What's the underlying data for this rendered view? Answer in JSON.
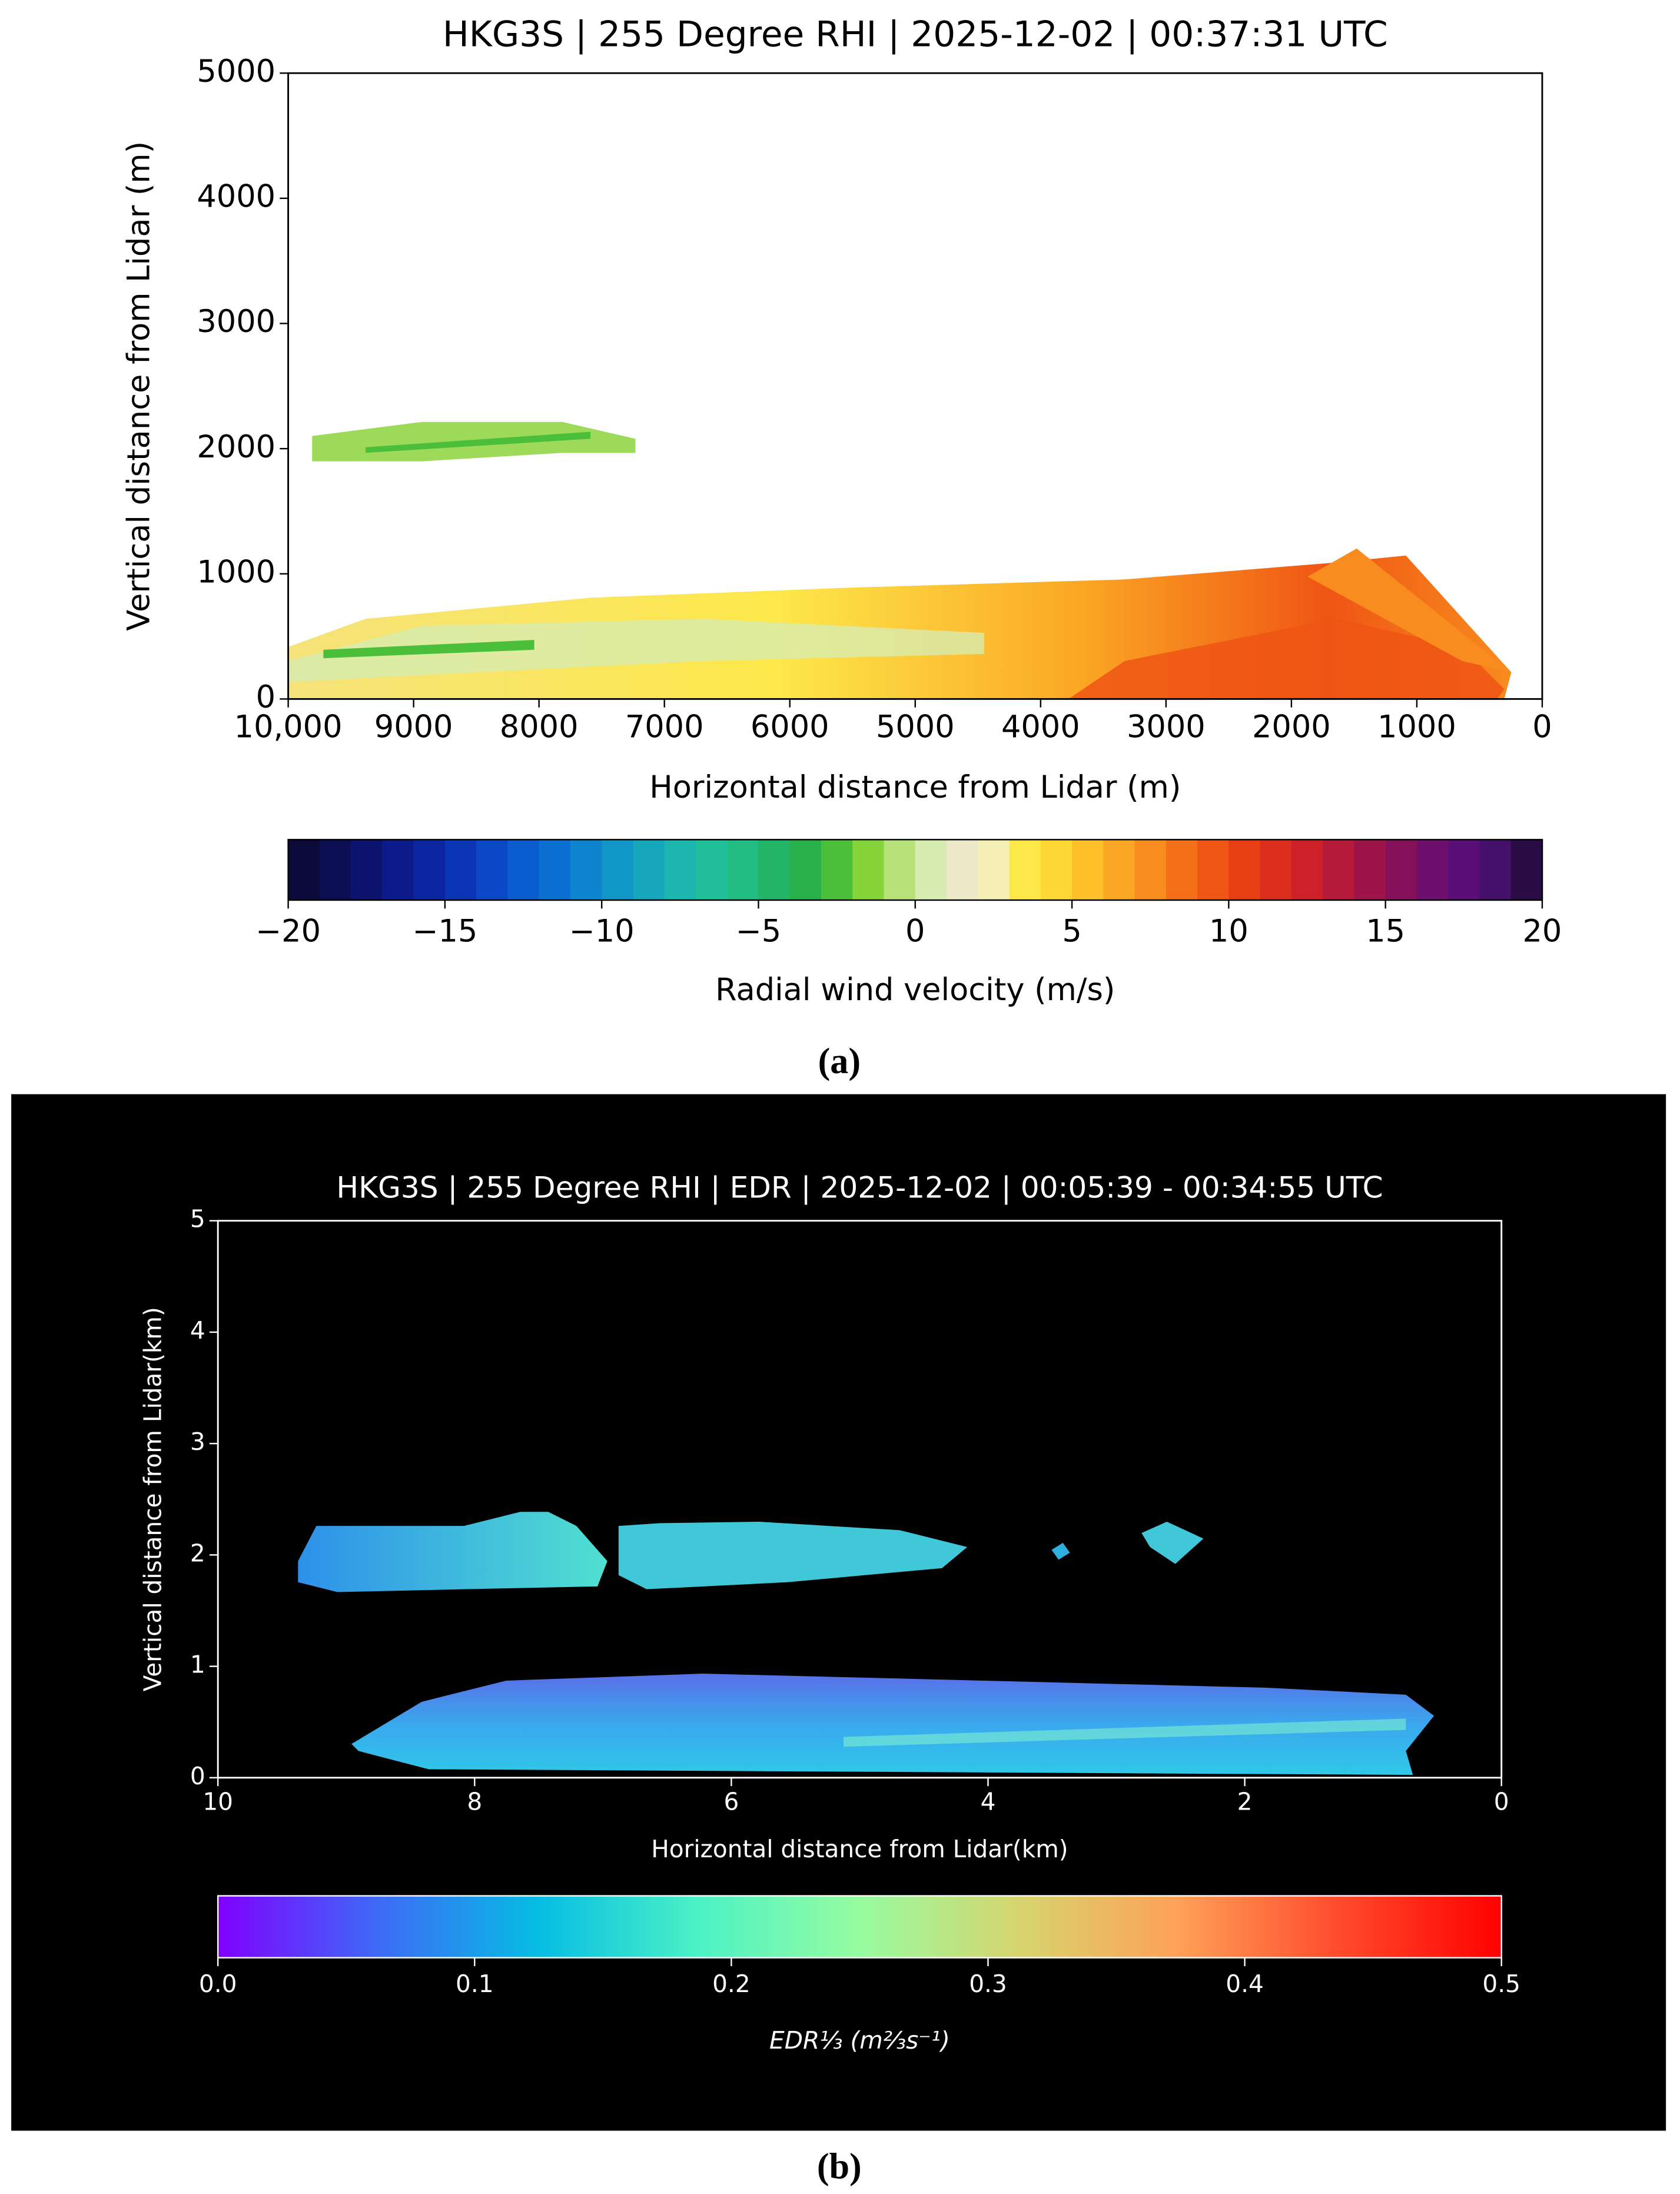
{
  "chart_data": [
    {
      "type": "rhi",
      "theme": "light",
      "title": "HKG3S | 255 Degree RHI | 2025-12-02 | 00:37:31 UTC",
      "xlabel": "Horizontal distance from Lidar (m)",
      "ylabel": "Vertical distance from Lidar (m)",
      "xlim": [
        10000,
        0
      ],
      "xticks": [
        {
          "value": 10000,
          "label": "10,000"
        },
        9000,
        8000,
        7000,
        6000,
        5000,
        4000,
        3000,
        2000,
        1000,
        0
      ],
      "ylim": [
        0,
        5000
      ],
      "yticks": [
        0,
        1000,
        2000,
        3000,
        4000,
        5000
      ],
      "colorbar": {
        "label": "Radial wind velocity (m/s)",
        "style": "discrete",
        "lim": [
          -20,
          20
        ],
        "ticks": [
          {
            "value": -20,
            "label": "−20"
          },
          {
            "value": -15,
            "label": "−15"
          },
          {
            "value": -10,
            "label": "−10"
          },
          {
            "value": -5,
            "label": "−5"
          },
          0,
          5,
          10,
          15,
          20
        ],
        "colors": [
          "#0b0a3a",
          "#0d0f55",
          "#0d1470",
          "#0c1a8a",
          "#0b25a0",
          "#0a35b5",
          "#0a48c5",
          "#0b5ccf",
          "#0c70d2",
          "#0e84cf",
          "#1196c8",
          "#16a7bc",
          "#1cb6ae",
          "#20bf9a",
          "#22bd82",
          "#23b567",
          "#28b04a",
          "#4cbf3a",
          "#85d43a",
          "#b7e27a",
          "#d7ecb0",
          "#ede8c8",
          "#f5eeb5",
          "#fde84a",
          "#fdd835",
          "#fdc02a",
          "#fba624",
          "#f88c1e",
          "#f47018",
          "#ef5514",
          "#e83e14",
          "#dd2d1c",
          "#cc2128",
          "#b51a38",
          "#9c1448",
          "#85105a",
          "#6e0f6d",
          "#5a0f78",
          "#44106a",
          "#2a0c45"
        ]
      },
      "caption": "(a)"
    },
    {
      "type": "rhi",
      "theme": "dark",
      "title": "HKG3S | 255 Degree RHI | EDR | 2025-12-02 | 00:05:39 - 00:34:55 UTC",
      "xlabel": "Horizontal distance from Lidar(km)",
      "ylabel": "Vertical distance from Lidar(km)",
      "xlim": [
        10,
        0
      ],
      "xticks": [
        10,
        8,
        6,
        4,
        2,
        0
      ],
      "ylim": [
        0,
        5
      ],
      "yticks": [
        0,
        1,
        2,
        3,
        4,
        5
      ],
      "colorbar": {
        "label": "EDR⅓ (m⅔s⁻¹)",
        "style": "continuous",
        "lim": [
          0,
          0.5
        ],
        "ticks": [
          {
            "value": 0,
            "label": "0.0"
          },
          0.1,
          0.2,
          0.3,
          0.4,
          0.5
        ],
        "colors": [
          "#8000ff",
          "#3d6bf6",
          "#06bde3",
          "#4cf2c5",
          "#97fca0",
          "#d7d46e",
          "#ffa058",
          "#ff4a2c",
          "#ff0000"
        ]
      },
      "caption": "(b)"
    }
  ]
}
